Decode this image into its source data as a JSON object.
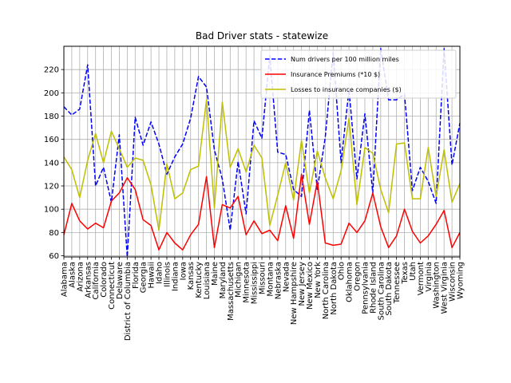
{
  "chart_data": {
    "type": "line",
    "title": "Bad Driver stats - statewize",
    "xlabel": "",
    "ylabel": "",
    "ylim": [
      59,
      240
    ],
    "yticks": [
      60,
      80,
      100,
      120,
      140,
      160,
      180,
      200,
      220
    ],
    "grid": true,
    "legend_position": "top-right",
    "categories": [
      "Alabama",
      "Alaska",
      "Arizona",
      "Arkansas",
      "California",
      "Colorado",
      "Connecticut",
      "Delaware",
      "District of Columbia",
      "Florida",
      "Georgia",
      "Hawaii",
      "Idaho",
      "Illinois",
      "Indiana",
      "Iowa",
      "Kansas",
      "Kentucky",
      "Louisiana",
      "Maine",
      "Maryland",
      "Massachusetts",
      "Michigan",
      "Minnesota",
      "Mississippi",
      "Missouri",
      "Montana",
      "Nebraska",
      "Nevada",
      "New Hampshire",
      "New Jersey",
      "New Mexico",
      "New York",
      "North Carolina",
      "North Dakota",
      "Ohio",
      "Oklahoma",
      "Oregon",
      "Pennsylvania",
      "Rhode Island",
      "South Carolina",
      "South Dakota",
      "Tennessee",
      "Texas",
      "Utah",
      "Vermont",
      "Virginia",
      "Washington",
      "West Virginia",
      "Wisconsin",
      "Wyoming"
    ],
    "series": [
      {
        "name": "Num drivers per 100 million miles",
        "color": "#0000ff",
        "style": "dashed",
        "values": [
          188,
          181,
          186,
          224,
          120,
          136,
          106,
          164,
          59,
          179,
          155,
          175,
          156,
          130,
          145,
          156,
          178,
          214,
          205,
          151,
          126,
          82,
          141,
          96,
          176,
          161,
          232,
          149,
          147,
          117,
          111,
          185,
          117,
          162,
          235,
          140,
          203,
          126,
          182,
          114,
          238,
          194,
          194,
          199,
          116,
          136,
          124,
          105,
          238,
          138,
          174
        ]
      },
      {
        "name": "Insurance Premiums (*10 $)",
        "color": "#ff0000",
        "style": "solid",
        "values": [
          78,
          105,
          90,
          83,
          88,
          84,
          107,
          114,
          127,
          117,
          91,
          86,
          65,
          80,
          71,
          65,
          78,
          87,
          128,
          67,
          104,
          101,
          111,
          78,
          90,
          79,
          82,
          73,
          103,
          75,
          130,
          87,
          124,
          71,
          69,
          70,
          88,
          80,
          90,
          114,
          85,
          67,
          77,
          100,
          81,
          71,
          77,
          87,
          99,
          67,
          80
        ]
      },
      {
        "name": "Losses to insurance companies ($)",
        "color": "#bfbf00",
        "style": "solid",
        "values": [
          145,
          134,
          110,
          142,
          165,
          140,
          167,
          152,
          136,
          144,
          142,
          121,
          82,
          139,
          109,
          114,
          134,
          137,
          194,
          101,
          192,
          136,
          152,
          132,
          155,
          144,
          86,
          112,
          140,
          108,
          159,
          114,
          150,
          127,
          109,
          133,
          178,
          104,
          153,
          148,
          117,
          97,
          156,
          157,
          109,
          109,
          153,
          111,
          151,
          106,
          122
        ]
      }
    ]
  }
}
